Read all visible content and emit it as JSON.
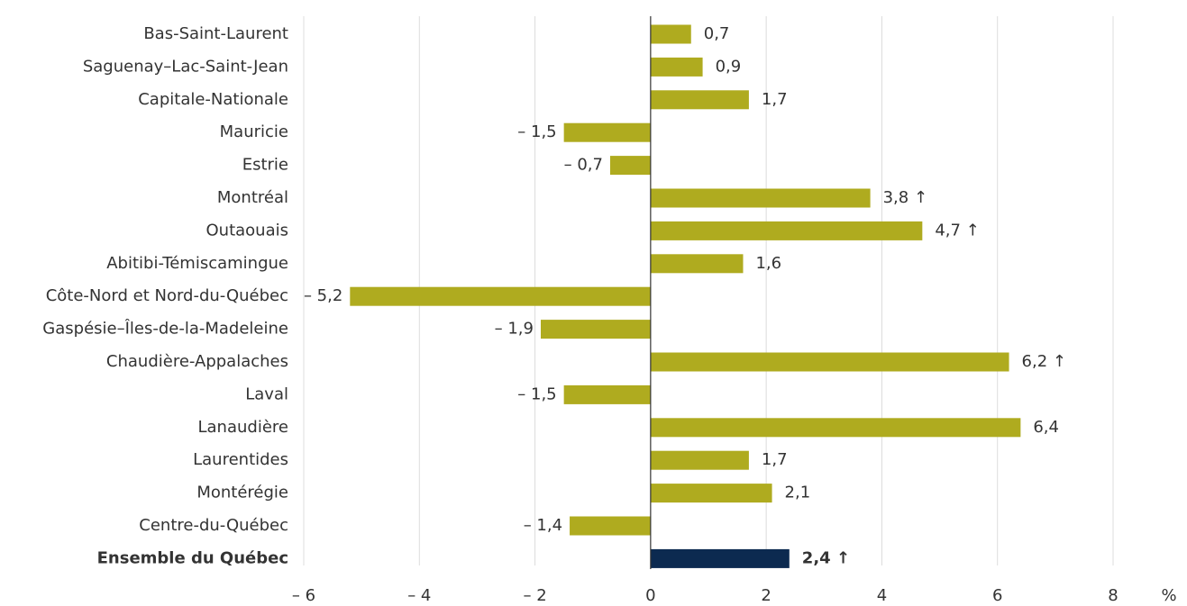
{
  "chart_data": {
    "type": "barh",
    "categories": [
      "Bas-Saint-Laurent",
      "Saguenay–Lac-Saint-Jean",
      "Capitale-Nationale",
      "Mauricie",
      "Estrie",
      "Montréal",
      "Outaouais",
      "Abitibi-Témiscamingue",
      "Côte-Nord et Nord-du-Québec",
      "Gaspésie–Îles-de-la-Madeleine",
      "Chaudière-Appalaches",
      "Laval",
      "Lanaudière",
      "Laurentides",
      "Montérégie",
      "Centre-du-Québec",
      "Ensemble du Québec"
    ],
    "values": [
      0.7,
      0.9,
      1.7,
      -1.5,
      -0.7,
      3.8,
      4.7,
      1.6,
      -5.2,
      -1.9,
      6.2,
      -1.5,
      6.4,
      1.7,
      2.1,
      -1.4,
      2.4
    ],
    "value_labels": [
      "0,7",
      "0,9",
      "1,7",
      "– 1,5",
      "– 0,7",
      "3,8 ↑",
      "4,7 ↑",
      "1,6",
      "– 5,2",
      "– 1,9",
      "6,2 ↑",
      "– 1,5",
      "6,4",
      "1,7",
      "2,1",
      "– 1,4",
      "2,4 ↑"
    ],
    "color": "#afab1f",
    "highlight": {
      "index": 16,
      "color": "#0c2a50"
    },
    "xlim": [
      -6,
      8
    ],
    "xticks": [
      {
        "value": -6,
        "label": "– 6"
      },
      {
        "value": -4,
        "label": "– 4"
      },
      {
        "value": -2,
        "label": "– 2"
      },
      0,
      2,
      4,
      6,
      8
    ],
    "x_unit": "%",
    "grid": true
  }
}
